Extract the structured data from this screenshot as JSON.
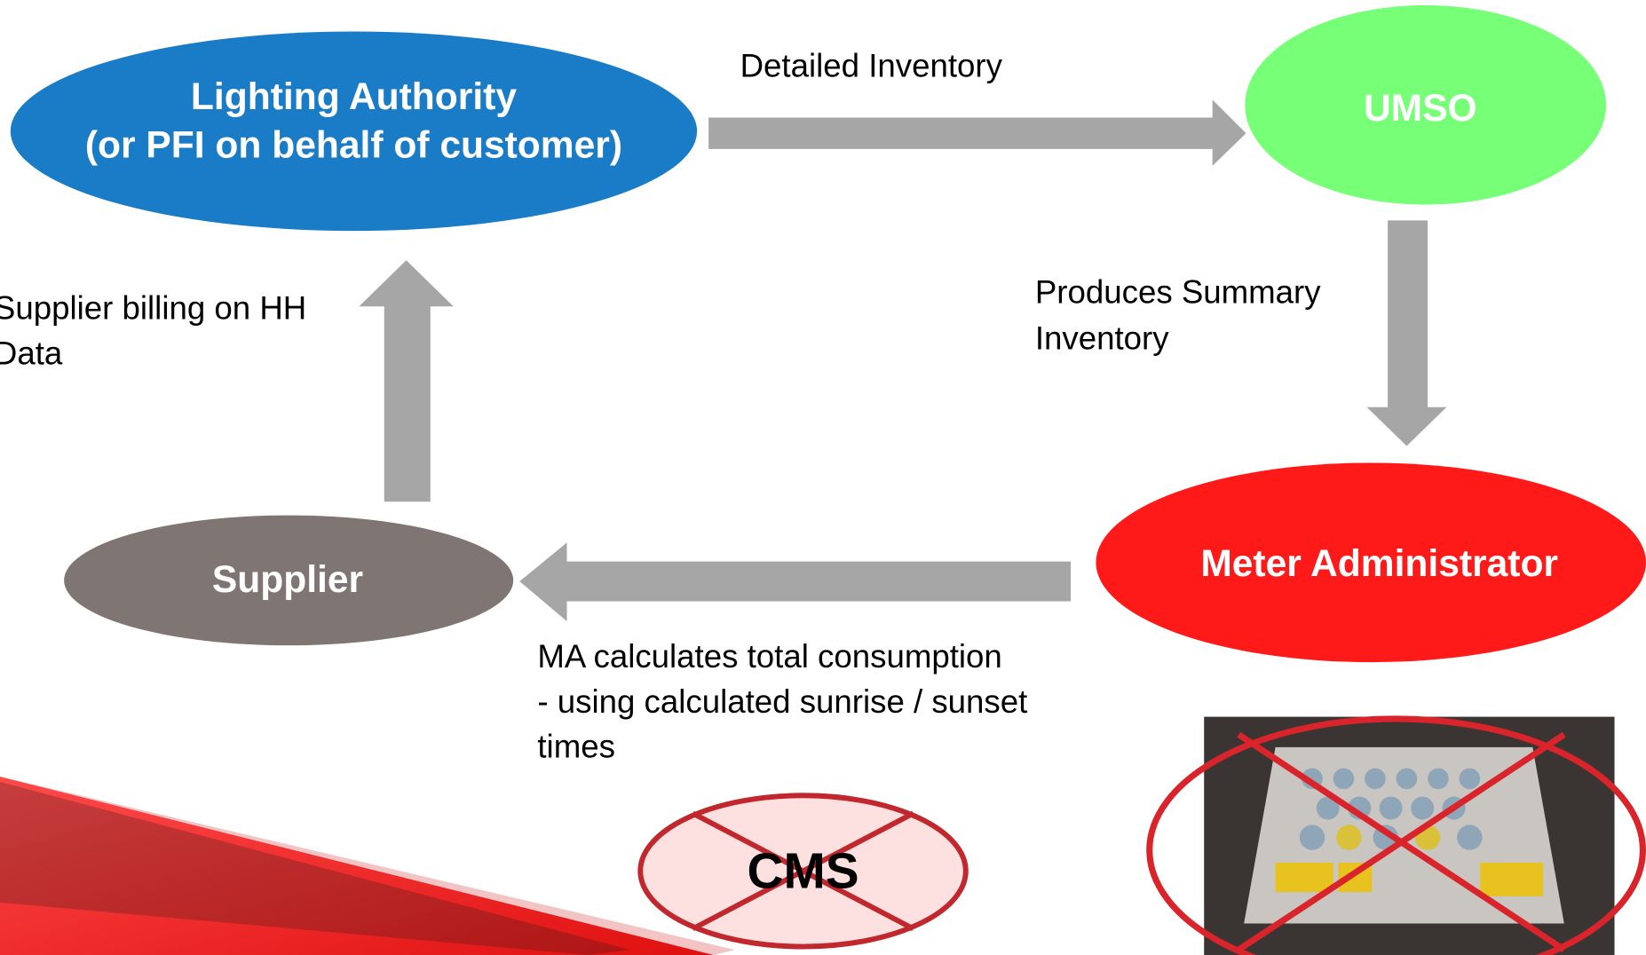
{
  "nodes": [
    {
      "lines": [
        "Lighting Authority",
        "(or PFI on behalf of customer)"
      ]
    },
    {
      "lines": [
        "UMSO"
      ]
    },
    {
      "lines": [
        "Meter Administrator"
      ]
    },
    {
      "lines": [
        "Supplier"
      ]
    }
  ],
  "edges": [
    {
      "lines": [
        "Detailed Inventory"
      ]
    },
    {
      "lines": [
        "Produces Summary",
        "Inventory"
      ]
    },
    {
      "lines": [
        "MA calculates total consumption",
        "- using calculated sunrise / sunset",
        "times"
      ]
    },
    {
      "lines": [
        "Supplier billing on HH",
        "Data"
      ]
    }
  ],
  "crossed_out": {
    "label": "CMS"
  }
}
